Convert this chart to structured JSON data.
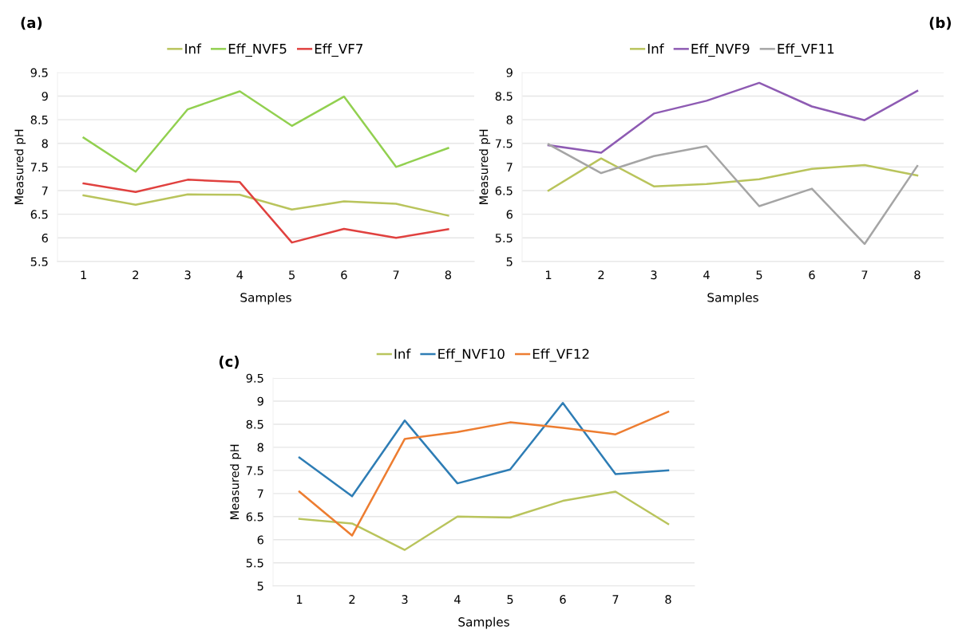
{
  "chart_data": [
    {
      "type": "line",
      "title": "(a)",
      "xlabel": "Samples",
      "ylabel": "Measured pH",
      "categories": [
        "1",
        "2",
        "3",
        "4",
        "5",
        "6",
        "7",
        "8"
      ],
      "ylim": [
        5.5,
        9.5
      ],
      "yticks": [
        5.5,
        6,
        6.5,
        7,
        7.5,
        8,
        8.5,
        9,
        9.5
      ],
      "grid": "y",
      "legend": "top",
      "series": [
        {
          "name": "Inf",
          "color": "#b9c45c",
          "values": [
            6.9,
            6.7,
            6.92,
            6.91,
            6.6,
            6.77,
            6.72,
            6.47
          ]
        },
        {
          "name": "Eff_NVF5",
          "color": "#92d050",
          "values": [
            8.12,
            7.4,
            8.72,
            9.1,
            8.37,
            8.99,
            7.5,
            7.9
          ]
        },
        {
          "name": "Eff_VF7",
          "color": "#e0413f",
          "values": [
            7.15,
            6.97,
            7.23,
            7.18,
            5.9,
            6.19,
            6.0,
            6.18
          ]
        }
      ]
    },
    {
      "type": "line",
      "title": "(b)",
      "xlabel": "Samples",
      "ylabel": "Measured pH",
      "categories": [
        "1",
        "2",
        "3",
        "4",
        "5",
        "6",
        "7",
        "8"
      ],
      "ylim": [
        5,
        9
      ],
      "yticks": [
        5,
        5.5,
        6,
        6.5,
        7,
        7.5,
        8,
        8.5,
        9
      ],
      "grid": "y",
      "legend": "top",
      "series": [
        {
          "name": "Inf",
          "color": "#b9c45c",
          "values": [
            6.5,
            7.18,
            6.59,
            6.64,
            6.74,
            6.96,
            7.04,
            6.82
          ]
        },
        {
          "name": "Eff_NVF9",
          "color": "#8e5bb3",
          "values": [
            7.46,
            7.3,
            8.13,
            8.4,
            8.78,
            8.28,
            7.99,
            8.61
          ]
        },
        {
          "name": "Eff_VF11",
          "color": "#a5a5a5",
          "values": [
            7.48,
            6.87,
            7.23,
            7.44,
            6.17,
            6.54,
            5.37,
            7.02
          ]
        }
      ]
    },
    {
      "type": "line",
      "title": "(c)",
      "xlabel": "Samples",
      "ylabel": "Measured pH",
      "categories": [
        "1",
        "2",
        "3",
        "4",
        "5",
        "6",
        "7",
        "8"
      ],
      "ylim": [
        5,
        9.5
      ],
      "yticks": [
        5,
        5.5,
        6,
        6.5,
        7,
        7.5,
        8,
        8.5,
        9,
        9.5
      ],
      "grid": "y",
      "legend": "top",
      "series": [
        {
          "name": "Inf",
          "color": "#b9c45c",
          "values": [
            6.45,
            6.35,
            5.78,
            6.5,
            6.48,
            6.84,
            7.04,
            6.34
          ]
        },
        {
          "name": "Eff_NVF10",
          "color": "#2e7db5",
          "values": [
            7.78,
            6.94,
            8.58,
            7.22,
            7.52,
            8.96,
            7.42,
            7.5
          ]
        },
        {
          "name": "Eff_VF12",
          "color": "#ed7d31",
          "values": [
            7.04,
            6.09,
            8.18,
            8.33,
            8.54,
            8.42,
            8.28,
            8.77
          ]
        }
      ]
    }
  ]
}
